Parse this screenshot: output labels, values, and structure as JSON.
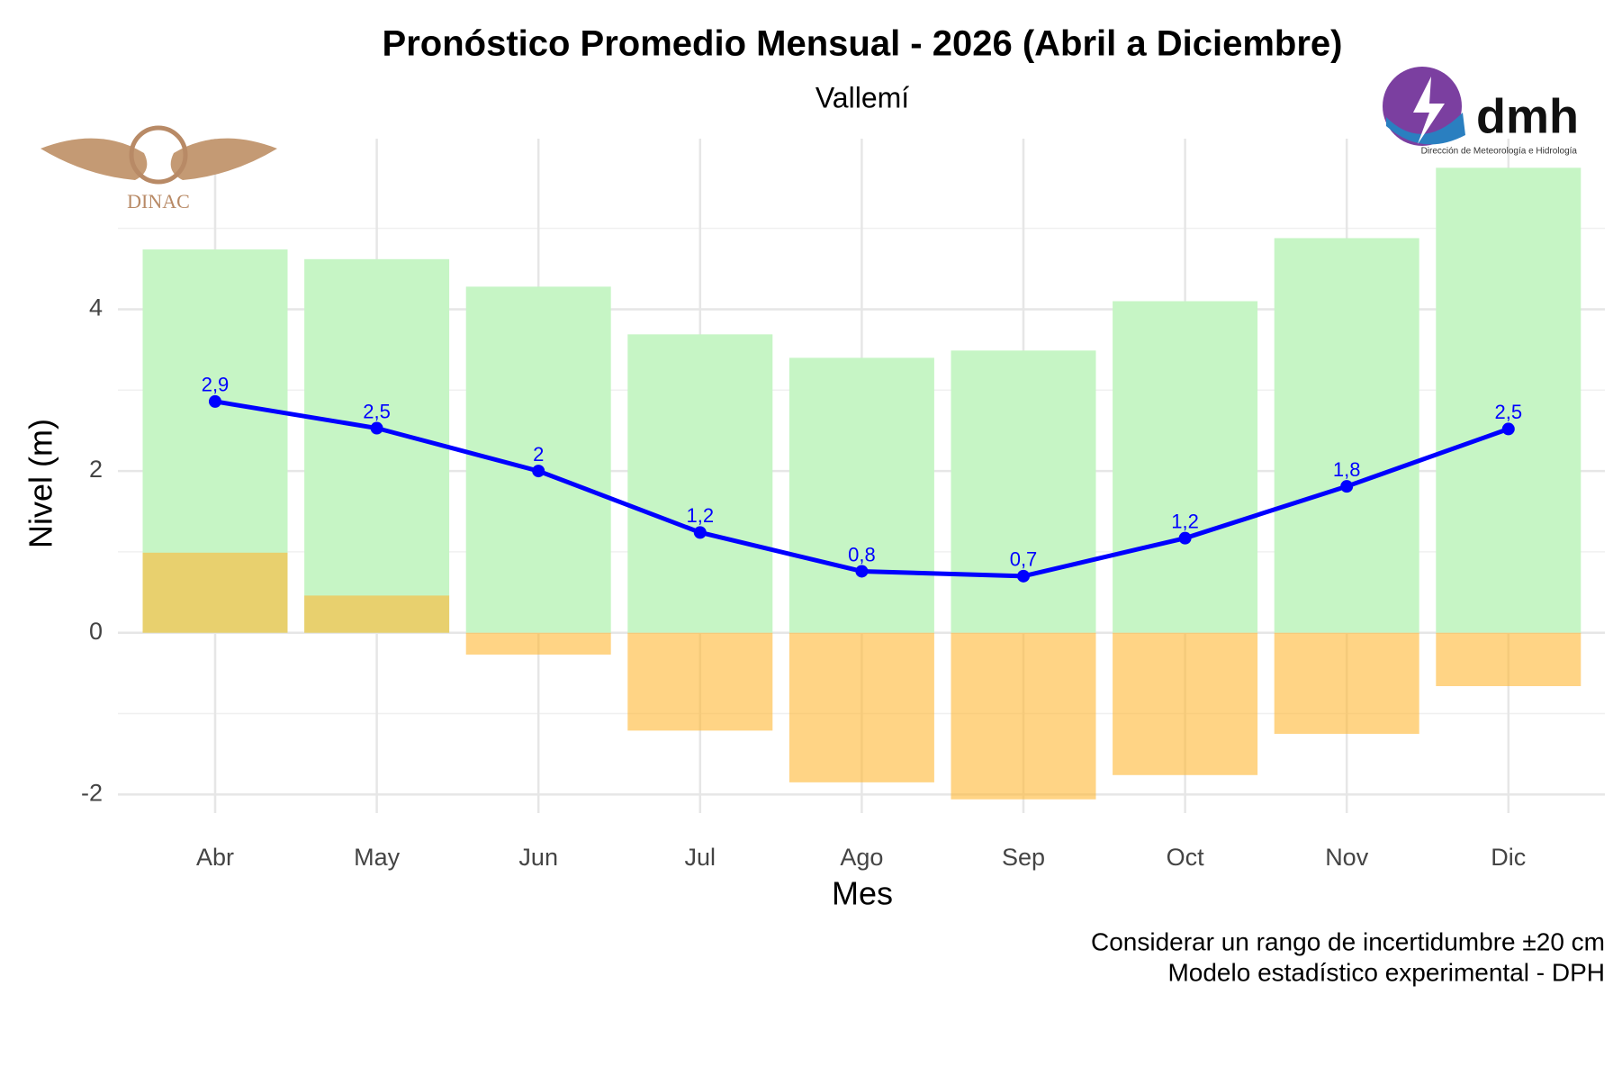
{
  "chart_data": {
    "type": "bar_line",
    "title": "Pronóstico Promedio Mensual - 2026 (Abril a Diciembre)",
    "subtitle": "Vallemí",
    "x_label": "Mes",
    "y_label": "Nivel (m)",
    "captions": [
      "Considerar un rango de incertidumbre ±20 cm",
      "Modelo estadístico experimental - DPH"
    ],
    "logos": {
      "left": "DINAC",
      "right": "dmh",
      "right_sub": "Dirección de Meteorología e Hidrología"
    },
    "categories": [
      "Abr",
      "May",
      "Jun",
      "Jul",
      "Ago",
      "Sep",
      "Oct",
      "Nov",
      "Dic"
    ],
    "series": [
      {
        "color": "#c6f5c5",
        "values": [
          4.74,
          4.62,
          4.28,
          3.69,
          3.4,
          3.49,
          4.1,
          4.88,
          5.75
        ]
      },
      {
        "color": "#ffb833",
        "values": [
          0.99,
          0.46,
          -0.27,
          -1.21,
          -1.85,
          -2.06,
          -1.76,
          -1.25,
          -0.66
        ]
      },
      {
        "color": "#0000ff",
        "values": [
          2.86,
          2.53,
          2.0,
          1.24,
          0.76,
          0.7,
          1.17,
          1.81,
          2.52
        ],
        "value_labels": [
          "2,9",
          "2,5",
          "2",
          "1,2",
          "0,8",
          "0,7",
          "1,2",
          "1,8",
          "2,5"
        ]
      }
    ],
    "ylim": [
      -2.23,
      6.11
    ],
    "yticks": [
      -2,
      0,
      2,
      4
    ],
    "y_minor_ticks": [
      -1,
      1,
      3,
      5
    ],
    "grid": true
  }
}
